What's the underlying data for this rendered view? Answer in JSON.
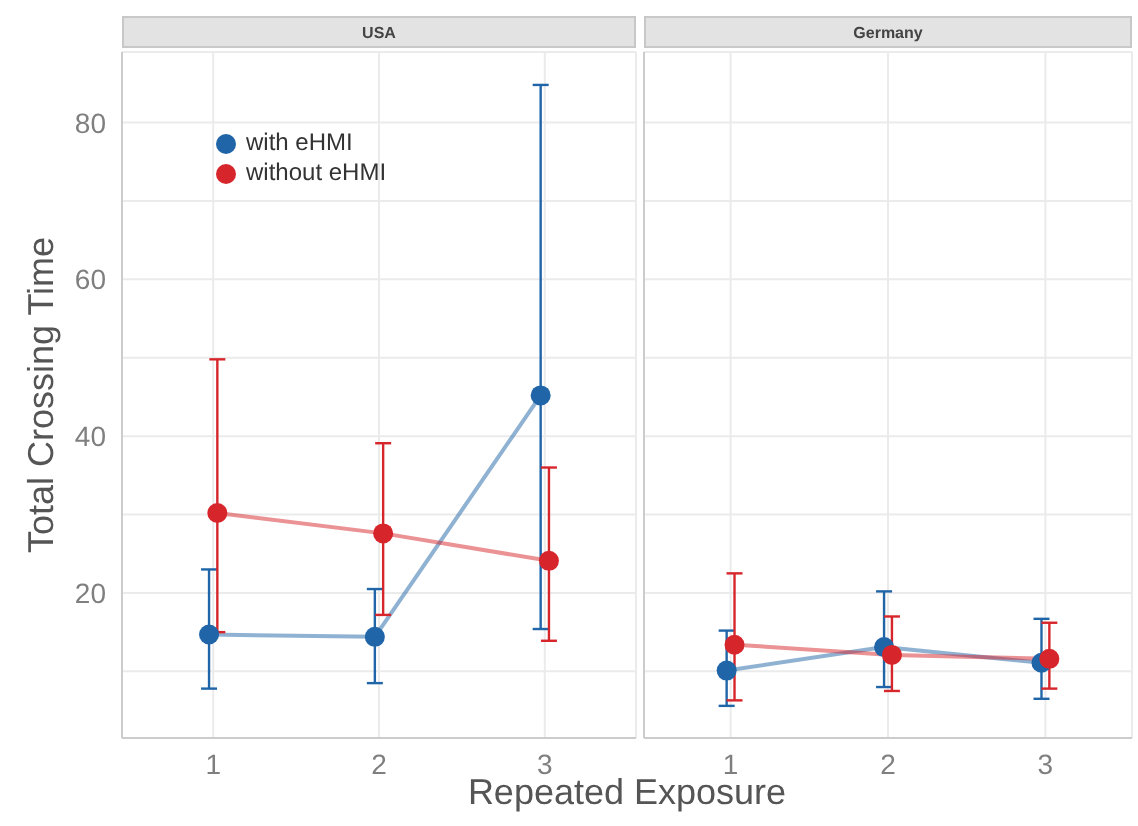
{
  "chart_data": [
    {
      "type": "line",
      "title": "USA",
      "xlabel": "Repeated Exposure",
      "ylabel": "Total Crossing Time",
      "categories": [
        "1",
        "2",
        "3"
      ],
      "ylim": [
        1.5,
        89
      ],
      "yticks": [
        {
          "value": 10,
          "label": null
        },
        20,
        {
          "value": 30,
          "label": null
        },
        40,
        {
          "value": 50,
          "label": null
        },
        60,
        {
          "value": 70,
          "label": null
        },
        80
      ],
      "grid": true,
      "legend": "top left",
      "marker": "circle",
      "series": [
        {
          "name": "with eHMI",
          "color": "#1f65a8",
          "values": [
            14.7,
            14.4,
            45.2
          ],
          "errors": [
            [
              7.8,
              23
            ],
            [
              8.5,
              20.5
            ],
            [
              15.4,
              84.8
            ]
          ]
        },
        {
          "name": "without eHMI",
          "color": "#d7262b",
          "values": [
            30.2,
            27.6,
            24.1
          ],
          "errors": [
            [
              15,
              49.8
            ],
            [
              17.2,
              39.1
            ],
            [
              13.9,
              36
            ]
          ]
        }
      ]
    },
    {
      "type": "line",
      "title": "Germany",
      "categories": [
        "1",
        "2",
        "3"
      ],
      "ylim": [
        1.5,
        89
      ],
      "yticks": [
        {
          "value": 10,
          "label": null
        },
        20,
        {
          "value": 30,
          "label": null
        },
        40,
        {
          "value": 50,
          "label": null
        },
        60,
        {
          "value": 70,
          "label": null
        },
        80
      ],
      "grid": true,
      "tick_labels": "x",
      "marker": "circle",
      "series": [
        {
          "color": "#1f65a8",
          "values": [
            10.1,
            13.1,
            11.1
          ],
          "errors": [
            [
              5.6,
              15.2
            ],
            [
              8,
              20.2
            ],
            [
              6.5,
              16.7
            ]
          ]
        },
        {
          "color": "#d7262b",
          "values": [
            13.4,
            12.1,
            11.6
          ],
          "errors": [
            [
              6.3,
              22.5
            ],
            [
              7.5,
              17
            ],
            [
              7.8,
              16.2
            ]
          ]
        }
      ]
    }
  ]
}
